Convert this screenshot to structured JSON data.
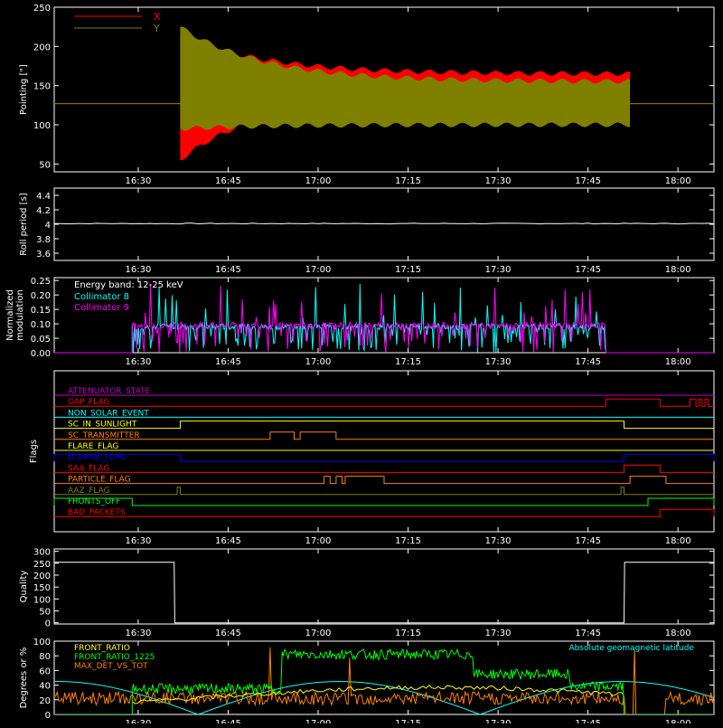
{
  "colors": {
    "background": "#000000",
    "axis": "#ffffff",
    "x": "#ff0000",
    "y": "#808000",
    "cyan": "#00ffff",
    "magenta": "#ff00ff",
    "green": "#00ff00",
    "orange": "#ff8000",
    "yellow": "#ffff00",
    "blue": "#0000ff",
    "purple": "#c000c0"
  },
  "time_ticks": [
    "16:30",
    "16:45",
    "17:00",
    "17:15",
    "17:30",
    "17:45",
    "18:00"
  ],
  "chart_data": [
    {
      "id": "pointing",
      "type": "line",
      "ylabel": "Pointing [\"]",
      "ylim": [
        40,
        250
      ],
      "yticks": [
        50,
        100,
        150,
        200,
        250
      ],
      "xlim_minutes": [
        16.0,
        126.0
      ],
      "legend_position": "top-left",
      "series": [
        {
          "name": "X",
          "color_key": "x",
          "baseline": 127,
          "start_minute": 37,
          "end_minute": 112,
          "upper_start": 215,
          "lower_start": 55,
          "upper_end": 165,
          "lower_end": 140
        },
        {
          "name": "Y",
          "color_key": "y",
          "baseline": 127,
          "start_minute": 37,
          "end_minute": 112,
          "upper_start": 225,
          "lower_start": 95,
          "upper_end": 155,
          "lower_end": 100
        }
      ]
    },
    {
      "id": "roll_period",
      "type": "line",
      "ylabel": "Roll period [s]",
      "ylim": [
        3.5,
        4.5
      ],
      "yticks": [
        3.6,
        3.8,
        4.0,
        4.2,
        4.4
      ],
      "series": [
        {
          "value": 4.01
        }
      ]
    },
    {
      "id": "modulation",
      "type": "line",
      "ylabel": "Normalized modulation",
      "ylim": [
        0,
        0.26
      ],
      "yticks": [
        0.0,
        0.05,
        0.1,
        0.15,
        0.2,
        0.25
      ],
      "yticklabels": [
        "0.00",
        "0.05",
        "0.10",
        "0.15",
        "0.20",
        "0.25"
      ],
      "annotation": "Energy band: 12-25 keV",
      "series": [
        {
          "name": "Collimator 8",
          "color_key": "cyan",
          "start_minute": 29,
          "end_minute": 108,
          "typical": 0.09
        },
        {
          "name": "Collimator 9",
          "color_key": "magenta",
          "start_minute": 29,
          "end_minute": 108,
          "typical": 0.095
        }
      ]
    },
    {
      "id": "flags",
      "type": "line",
      "ylabel": "Flags",
      "flags": [
        {
          "name": "ATTENUATOR_STATE",
          "color_key": "purple",
          "high": []
        },
        {
          "name": "GAP_FLAG",
          "color_key": "x",
          "high": [
            [
              108,
              117
            ],
            [
              122,
              123
            ],
            [
              123.5,
              124
            ],
            [
              124.5,
              125
            ]
          ]
        },
        {
          "name": "NON_SOLAR_EVENT",
          "color_key": "cyan",
          "high": []
        },
        {
          "name": "SC_IN_SUNLIGHT",
          "color_key": "yellow",
          "high": [
            [
              37,
              111
            ]
          ]
        },
        {
          "name": "SC_TRANSMITTER",
          "color_key": "orange",
          "high": [
            [
              52,
              56
            ],
            [
              57,
              63
            ]
          ]
        },
        {
          "name": "FLARE_FLAG",
          "color_key": "yellow",
          "high": []
        },
        {
          "name": "ECLIPSE_FLAG",
          "color_key": "blue",
          "high": [
            [
              16,
              37
            ],
            [
              111,
              126
            ]
          ]
        },
        {
          "name": "SAA_FLAG",
          "color_key": "x",
          "high": [
            [
              111,
              117
            ]
          ]
        },
        {
          "name": "PARTICLE_FLAG",
          "color_key": "orange",
          "high": [
            [
              61,
              62
            ],
            [
              63,
              64
            ],
            [
              64.5,
              71
            ],
            [
              112,
              118
            ]
          ]
        },
        {
          "name": "AAZ_FLAG",
          "color_key": "y",
          "high": [
            [
              36.5,
              37
            ],
            [
              110.5,
              111
            ]
          ]
        },
        {
          "name": "FRONTS_OFF",
          "color_key": "green",
          "high": [
            [
              16,
              29
            ],
            [
              115,
              126
            ]
          ]
        },
        {
          "name": "BAD_PACKETS",
          "color_key": "x",
          "high": [
            [
              117,
              126
            ]
          ]
        }
      ]
    },
    {
      "id": "quality",
      "type": "line",
      "ylabel": "Quality",
      "ylim": [
        -5,
        310
      ],
      "yticks": [
        0,
        50,
        100,
        150,
        200,
        250,
        300
      ],
      "series": [
        {
          "segments": [
            [
              16,
              254
            ],
            [
              36,
              254
            ],
            [
              36.1,
              0
            ],
            [
              111,
              0
            ],
            [
              111.1,
              254
            ],
            [
              126,
              254
            ]
          ]
        }
      ]
    },
    {
      "id": "geomagnetic",
      "type": "line",
      "ylabel": "Degrees or %",
      "ylim": [
        0,
        100
      ],
      "yticks": [
        0,
        20,
        40,
        60,
        80,
        100
      ],
      "series": [
        {
          "name": "FRONT_RATIO",
          "color_key": "yellow",
          "start_minute": 29,
          "end_minute": 111,
          "level": 25
        },
        {
          "name": "FRONT_RATIO_1225",
          "color_key": "green",
          "start_minute": 29,
          "end_minute": 111,
          "level": 50
        },
        {
          "name": "MAX_DET_VS_TOT",
          "color_key": "orange",
          "level": 22
        },
        {
          "name": "Absolute geomagnetic latitude",
          "color_key": "cyan"
        }
      ]
    }
  ]
}
